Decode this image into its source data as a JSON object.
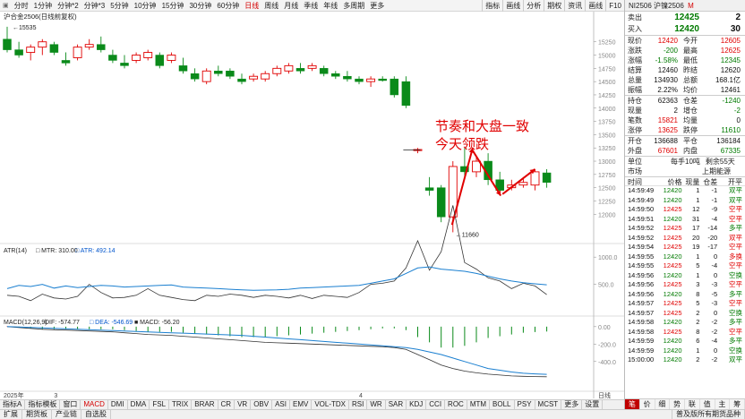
{
  "toolbar": {
    "periods": [
      "分时",
      "1分钟",
      "分钟*2",
      "分钟*3",
      "5分钟",
      "10分钟",
      "15分钟",
      "30分钟",
      "60分钟",
      "日线",
      "周线",
      "月线",
      "季线",
      "年线",
      "多周期",
      "更多"
    ],
    "active_period": "日线",
    "right_buttons": [
      "指标",
      "画线",
      "分析",
      "期权",
      "资讯",
      "画线",
      "F10"
    ]
  },
  "chart": {
    "title": "沪合金2506(日线前复权)",
    "high_label": "15535",
    "low_label": "11660",
    "annotation_line1": "节奏和大盘一致",
    "annotation_line2": "今天领跌",
    "price_axis": [
      "15250",
      "15000",
      "14750",
      "14500",
      "14250",
      "14000",
      "13750",
      "13500",
      "13250",
      "13000",
      "12750",
      "12500",
      "12250",
      "12000"
    ],
    "atr_label": "ATR(14)",
    "atr_mtr": "MTR: 310.00",
    "atr_atr": "ATR: 492.14",
    "atr_axis": [
      "1000.0",
      "500.0"
    ],
    "macd_label": "MACD(12,26,9)",
    "macd_dif": "DIF: -574.77",
    "macd_dea": "DEA: -546.69",
    "macd_macd": "MACD: -56.20",
    "macd_axis": [
      "0.00",
      "-200.0",
      "-400.0"
    ],
    "date_left": "2025年",
    "date_mid1": "3",
    "date_mid2": "4",
    "bottom_right": "日线"
  },
  "chart_data": {
    "type": "candlestick",
    "ohlc": [
      [
        15300,
        15535,
        15050,
        15100
      ],
      [
        15100,
        15250,
        14950,
        15000
      ],
      [
        15050,
        15200,
        14900,
        15150
      ],
      [
        15150,
        15300,
        15000,
        15250
      ],
      [
        15200,
        15250,
        15000,
        15050
      ],
      [
        14900,
        15050,
        14800,
        14850
      ],
      [
        14950,
        15200,
        14900,
        15150
      ],
      [
        15150,
        15300,
        15100,
        15200
      ],
      [
        15200,
        15350,
        15050,
        15100
      ],
      [
        15000,
        15100,
        14850,
        14900
      ],
      [
        14850,
        15000,
        14750,
        14800
      ],
      [
        14900,
        15050,
        14850,
        15000
      ],
      [
        14950,
        15100,
        14900,
        15050
      ],
      [
        15000,
        15050,
        14750,
        14800
      ],
      [
        14900,
        15050,
        14850,
        15000
      ],
      [
        14800,
        14950,
        14650,
        14700
      ],
      [
        14650,
        14750,
        14500,
        14550
      ],
      [
        14500,
        14750,
        14450,
        14700
      ],
      [
        14700,
        14800,
        14600,
        14650
      ],
      [
        14700,
        14750,
        14550,
        14600
      ],
      [
        14550,
        14650,
        14450,
        14500
      ],
      [
        14550,
        14650,
        14500,
        14600
      ],
      [
        14550,
        14700,
        14500,
        14650
      ],
      [
        14650,
        14800,
        14600,
        14750
      ],
      [
        14700,
        14850,
        14650,
        14800
      ],
      [
        14750,
        14850,
        14650,
        14700
      ],
      [
        14750,
        14850,
        14700,
        14800
      ],
      [
        14750,
        14800,
        14600,
        14650
      ],
      [
        14650,
        14700,
        14550,
        14600
      ],
      [
        14600,
        14700,
        14500,
        14550
      ],
      [
        14550,
        14600,
        14450,
        14500
      ],
      [
        14500,
        14600,
        14400,
        14550
      ],
      [
        14550,
        14600,
        14500,
        14520
      ],
      [
        14550,
        14600,
        14200,
        14250
      ],
      [
        14500,
        14600,
        14000,
        14050
      ],
      [
        13200,
        13250,
        13150,
        13220
      ],
      [
        12500,
        12700,
        12350,
        12450
      ],
      [
        12500,
        12550,
        11850,
        11950
      ],
      [
        11950,
        13000,
        11660,
        12900
      ],
      [
        12900,
        13250,
        12700,
        12800
      ],
      [
        12800,
        13100,
        12700,
        13000
      ],
      [
        13000,
        13150,
        12550,
        12650
      ],
      [
        12650,
        12800,
        12400,
        12450
      ],
      [
        12500,
        12650,
        12450,
        12550
      ],
      [
        12550,
        12700,
        12500,
        12600
      ],
      [
        12550,
        12850,
        12450,
        12800
      ],
      [
        12780,
        12850,
        12500,
        12600
      ]
    ],
    "price_range": [
      11600,
      15650
    ],
    "atr_values": [
      420,
      480,
      460,
      500,
      430,
      470,
      440,
      460,
      480,
      470,
      450,
      460,
      470,
      480,
      490,
      450,
      440,
      430,
      420,
      410,
      400,
      390,
      395,
      400,
      410,
      430,
      440,
      450,
      460,
      470,
      480,
      520,
      560,
      600,
      700,
      800,
      820,
      780,
      760,
      740,
      700,
      650,
      600,
      560,
      530,
      510,
      492
    ],
    "mtr_values": [
      300,
      280,
      200,
      320,
      250,
      230,
      280,
      500,
      350,
      250,
      260,
      300,
      420,
      300,
      260,
      220,
      200,
      300,
      280,
      320,
      300,
      260,
      300,
      280,
      250,
      300,
      240,
      300,
      280,
      260,
      350,
      500,
      520,
      560,
      800,
      1300,
      760,
      1100,
      1950,
      900,
      780,
      620,
      560,
      420,
      520,
      470,
      310
    ],
    "atr_range": [
      0,
      1200
    ],
    "macd_dif": [
      0,
      -10,
      -20,
      -30,
      -35,
      -40,
      -45,
      -50,
      -55,
      -60,
      -70,
      -80,
      -90,
      -95,
      -100,
      -110,
      -120,
      -130,
      -140,
      -150,
      -160,
      -170,
      -180,
      -185,
      -190,
      -195,
      -200,
      -205,
      -210,
      -215,
      -220,
      -225,
      -230,
      -240,
      -260,
      -320,
      -380,
      -440,
      -480,
      -510,
      -530,
      -545,
      -555,
      -565,
      -570,
      -573,
      -575
    ],
    "macd_dea": [
      0,
      -5,
      -10,
      -15,
      -20,
      -25,
      -30,
      -35,
      -40,
      -45,
      -50,
      -55,
      -60,
      -65,
      -70,
      -75,
      -80,
      -85,
      -90,
      -95,
      -100,
      -110,
      -120,
      -130,
      -140,
      -150,
      -160,
      -170,
      -180,
      -190,
      -200,
      -210,
      -220,
      -230,
      -240,
      -260,
      -290,
      -320,
      -360,
      -400,
      -440,
      -480,
      -500,
      -520,
      -535,
      -542,
      -547
    ],
    "macd_hist": [
      5,
      -10,
      -20,
      -30,
      -30,
      -30,
      -30,
      -30,
      -30,
      -30,
      -40,
      -50,
      -60,
      -60,
      -60,
      -70,
      -80,
      -90,
      -100,
      -110,
      -120,
      -120,
      -120,
      -110,
      -100,
      -90,
      -80,
      -70,
      -60,
      -50,
      -40,
      -30,
      -20,
      -20,
      -40,
      -120,
      -180,
      -240,
      -240,
      -220,
      -180,
      -130,
      -110,
      -90,
      -70,
      -62,
      -56
    ],
    "macd_range": [
      -700,
      60
    ]
  },
  "quote": {
    "code": "NI2506",
    "name": "沪镍2506",
    "tag": "M",
    "ask_label": "卖出",
    "ask_price": "12425",
    "ask_vol": "2",
    "bid_label": "买入",
    "bid_price": "12420",
    "bid_vol": "30",
    "rows": [
      [
        "现价",
        "12420",
        "red",
        "今开",
        "12605",
        "red"
      ],
      [
        "涨跌",
        "-200",
        "green",
        "最高",
        "12625",
        "red"
      ],
      [
        "涨幅",
        "-1.58%",
        "green",
        "最低",
        "12345",
        "green"
      ],
      [
        "结算",
        "12460",
        "blk",
        "昨结",
        "12620",
        "blk"
      ],
      [
        "总量",
        "134930",
        "blk",
        "总额",
        "168.1亿",
        "blk"
      ],
      [
        "振幅",
        "2.22%",
        "blk",
        "均价",
        "12461",
        "blk"
      ]
    ],
    "rows2": [
      [
        "持仓",
        "62363",
        "blk",
        "仓差",
        "-1240",
        "green"
      ],
      [
        "现量",
        "2",
        "blk",
        "增仓",
        "-2",
        "green"
      ],
      [
        "笔数",
        "15821",
        "red",
        "均量",
        "0",
        "blk"
      ],
      [
        "涨停",
        "13625",
        "red",
        "跌停",
        "11610",
        "green"
      ]
    ],
    "rows3": [
      [
        "开仓",
        "136688",
        "blk",
        "平仓",
        "136184",
        "blk"
      ],
      [
        "外盘",
        "67601",
        "red",
        "内盘",
        "67335",
        "green"
      ]
    ],
    "unit_label": "单位",
    "unit_value": "每手10吨",
    "remain": "剩余55天",
    "market_label": "市场",
    "market_value": "上期能源"
  },
  "ticks": {
    "headers": [
      "时间",
      "价格",
      "现量",
      "仓差",
      "开平"
    ],
    "rows": [
      [
        "14:59:49",
        "12420",
        "1",
        "-1",
        "双平",
        "green"
      ],
      [
        "14:59:49",
        "12420",
        "1",
        "-1",
        "双平",
        "green"
      ],
      [
        "14:59:50",
        "12425",
        "12",
        "-9",
        "空平",
        "red"
      ],
      [
        "14:59:51",
        "12420",
        "31",
        "-4",
        "空平",
        "red"
      ],
      [
        "14:59:52",
        "12425",
        "17",
        "-14",
        "多平",
        "green"
      ],
      [
        "14:59:52",
        "12425",
        "20",
        "-20",
        "双平",
        "red"
      ],
      [
        "14:59:54",
        "12425",
        "19",
        "-17",
        "空平",
        "red"
      ],
      [
        "14:59:55",
        "12420",
        "1",
        "0",
        "多换",
        "red"
      ],
      [
        "14:59:55",
        "12425",
        "5",
        "-4",
        "空平",
        "red"
      ],
      [
        "14:59:56",
        "12420",
        "1",
        "0",
        "空换",
        "green"
      ],
      [
        "14:59:56",
        "12425",
        "3",
        "-3",
        "空平",
        "red"
      ],
      [
        "14:59:56",
        "12420",
        "8",
        "-5",
        "多平",
        "green"
      ],
      [
        "14:59:57",
        "12425",
        "5",
        "-3",
        "空平",
        "red"
      ],
      [
        "14:59:57",
        "12425",
        "2",
        "0",
        "空换",
        "green"
      ],
      [
        "14:59:58",
        "12420",
        "2",
        "-2",
        "多平",
        "green"
      ],
      [
        "14:59:58",
        "12425",
        "8",
        "-2",
        "空平",
        "red"
      ],
      [
        "14:59:59",
        "12420",
        "6",
        "-4",
        "多平",
        "green"
      ],
      [
        "14:59:59",
        "12420",
        "1",
        "0",
        "空换",
        "green"
      ],
      [
        "15:00:00",
        "12420",
        "2",
        "-2",
        "双平",
        "green"
      ]
    ]
  },
  "bottom_tabs1": [
    "指标A",
    "指标模板",
    "窗口",
    "MACD",
    "DMI",
    "DMA",
    "FSL",
    "TRIX",
    "BRAR",
    "CR",
    "VR",
    "OBV",
    "ASI",
    "EMV",
    "VOL-TDX",
    "RSI",
    "WR",
    "SAR",
    "KDJ",
    "CCI",
    "ROC",
    "MTM",
    "BOLL",
    "PSY",
    "MCST",
    "更多",
    "设置"
  ],
  "active_tab1": "MACD",
  "bottom_tabs2": [
    "扩展",
    "期货板",
    "产业链",
    "自选股"
  ],
  "bottom_tabs2_right": "普及版所有期货品种",
  "right_bottom_tabs": [
    "笔",
    "价",
    "细",
    "势",
    "联",
    "值",
    "主",
    "筹"
  ]
}
